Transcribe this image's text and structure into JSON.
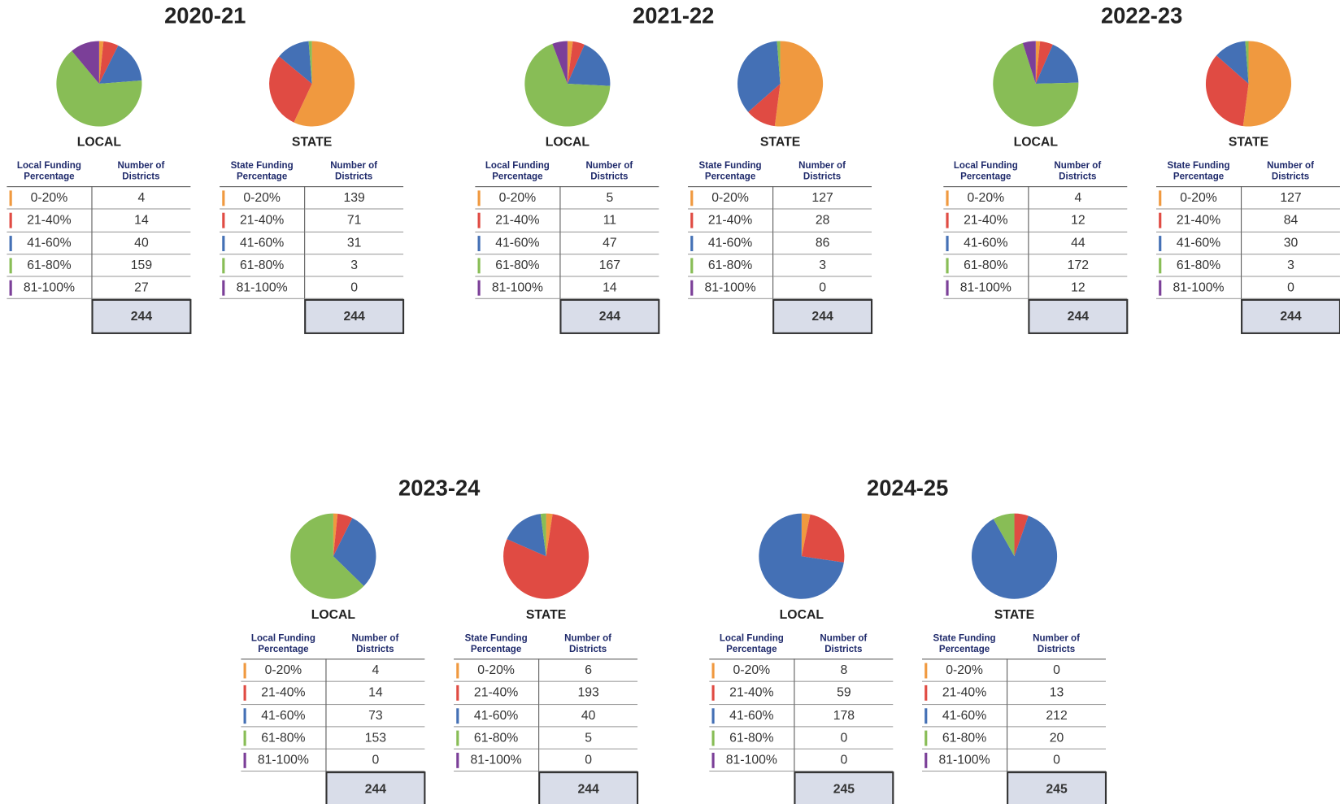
{
  "years": [
    "2020-21",
    "2021-22",
    "2022-23",
    "2023-24",
    "2024-25"
  ],
  "chart_data": [
    {
      "type": "pie",
      "title": "LOCAL",
      "columns": [
        "Local Funding Percentage",
        "Number of Districts"
      ],
      "categories": [
        "0-20%",
        "21-40%",
        "41-60%",
        "61-80%",
        "81-100%"
      ],
      "values": [
        4,
        14,
        40,
        159,
        27
      ],
      "total": 244,
      "colors": [
        "#f0993f",
        "#e04b43",
        "#4470b5",
        "#88bd56",
        "#7b3f98"
      ]
    },
    {
      "type": "pie",
      "title": "STATE",
      "columns": [
        "State Funding Percentage",
        "Number of Districts"
      ],
      "categories": [
        "0-20%",
        "21-40%",
        "41-60%",
        "61-80%",
        "81-100%"
      ],
      "values": [
        139,
        71,
        31,
        3,
        0
      ],
      "total": 244,
      "colors": [
        "#f0993f",
        "#e04b43",
        "#4470b5",
        "#88bd56",
        "#7b3f98"
      ]
    },
    {
      "type": "pie",
      "title": "LOCAL",
      "columns": [
        "Local Funding Percentage",
        "Number of Districts"
      ],
      "categories": [
        "0-20%",
        "21-40%",
        "41-60%",
        "61-80%",
        "81-100%"
      ],
      "values": [
        5,
        11,
        47,
        167,
        14
      ],
      "total": 244,
      "colors": [
        "#f0993f",
        "#e04b43",
        "#4470b5",
        "#88bd56",
        "#7b3f98"
      ]
    },
    {
      "type": "pie",
      "title": "STATE",
      "columns": [
        "State Funding Percentage",
        "Number of Districts"
      ],
      "categories": [
        "0-20%",
        "21-40%",
        "41-60%",
        "61-80%",
        "81-100%"
      ],
      "values": [
        127,
        28,
        86,
        3,
        0
      ],
      "total": 244,
      "colors": [
        "#f0993f",
        "#e04b43",
        "#4470b5",
        "#88bd56",
        "#7b3f98"
      ]
    },
    {
      "type": "pie",
      "title": "LOCAL",
      "columns": [
        "Local Funding Percentage",
        "Number of Districts"
      ],
      "categories": [
        "0-20%",
        "21-40%",
        "41-60%",
        "61-80%",
        "81-100%"
      ],
      "values": [
        4,
        12,
        44,
        172,
        12
      ],
      "total": 244,
      "colors": [
        "#f0993f",
        "#e04b43",
        "#4470b5",
        "#88bd56",
        "#7b3f98"
      ]
    },
    {
      "type": "pie",
      "title": "STATE",
      "columns": [
        "State Funding Percentage",
        "Number of Districts"
      ],
      "categories": [
        "0-20%",
        "21-40%",
        "41-60%",
        "61-80%",
        "81-100%"
      ],
      "values": [
        127,
        84,
        30,
        3,
        0
      ],
      "total": 244,
      "colors": [
        "#f0993f",
        "#e04b43",
        "#4470b5",
        "#88bd56",
        "#7b3f98"
      ]
    },
    {
      "type": "pie",
      "title": "LOCAL",
      "columns": [
        "Local Funding Percentage",
        "Number of Districts"
      ],
      "categories": [
        "0-20%",
        "21-40%",
        "41-60%",
        "61-80%",
        "81-100%"
      ],
      "values": [
        4,
        14,
        73,
        153,
        0
      ],
      "total": 244,
      "colors": [
        "#f0993f",
        "#e04b43",
        "#4470b5",
        "#88bd56",
        "#7b3f98"
      ]
    },
    {
      "type": "pie",
      "title": "STATE",
      "columns": [
        "State Funding Percentage",
        "Number of Districts"
      ],
      "categories": [
        "0-20%",
        "21-40%",
        "41-60%",
        "61-80%",
        "81-100%"
      ],
      "values": [
        6,
        193,
        40,
        5,
        0
      ],
      "total": 244,
      "colors": [
        "#f0993f",
        "#e04b43",
        "#4470b5",
        "#88bd56",
        "#7b3f98"
      ]
    },
    {
      "type": "pie",
      "title": "LOCAL",
      "columns": [
        "Local Funding Percentage",
        "Number of Districts"
      ],
      "categories": [
        "0-20%",
        "21-40%",
        "41-60%",
        "61-80%",
        "81-100%"
      ],
      "values": [
        8,
        59,
        178,
        0,
        0
      ],
      "total": 245,
      "colors": [
        "#f0993f",
        "#e04b43",
        "#4470b5",
        "#88bd56",
        "#7b3f98"
      ]
    },
    {
      "type": "pie",
      "title": "STATE",
      "columns": [
        "State Funding Percentage",
        "Number of Districts"
      ],
      "categories": [
        "0-20%",
        "21-40%",
        "41-60%",
        "61-80%",
        "81-100%"
      ],
      "values": [
        0,
        13,
        212,
        20,
        0
      ],
      "total": 245,
      "colors": [
        "#f0993f",
        "#e04b43",
        "#4470b5",
        "#88bd56",
        "#7b3f98"
      ]
    }
  ]
}
